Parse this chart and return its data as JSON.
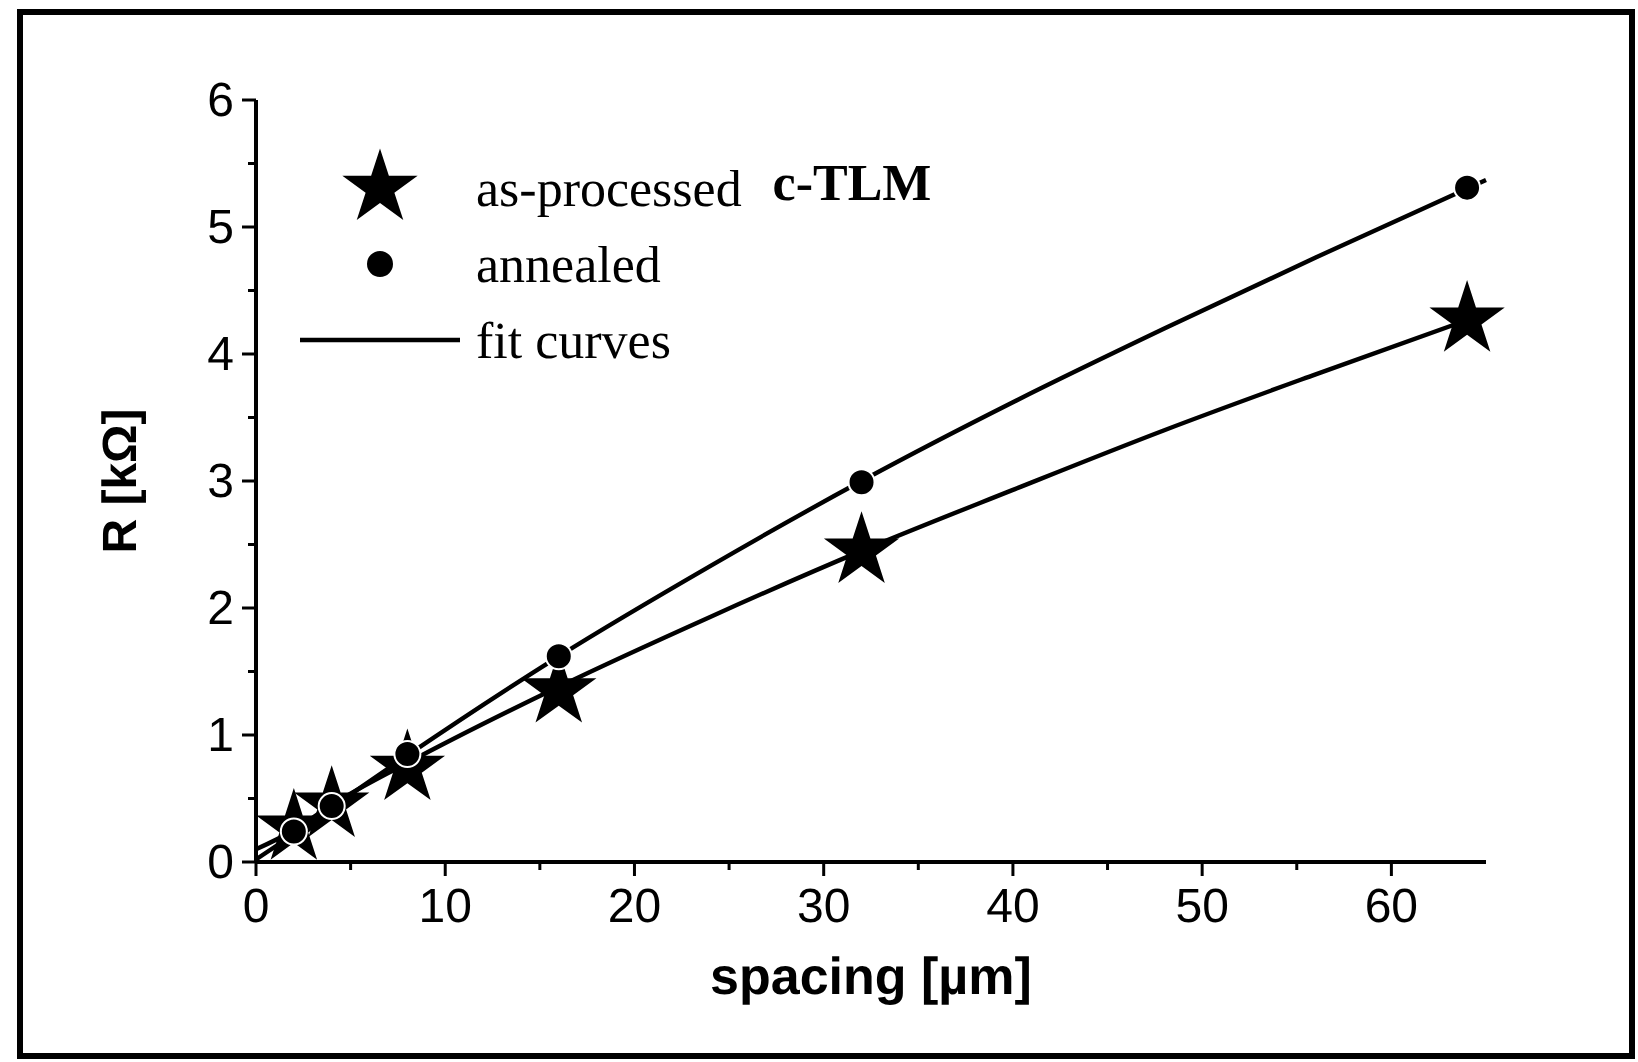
{
  "chart_data": {
    "type": "scatter",
    "xlabel": "spacing  [µm]",
    "ylabel": "R  [kΩ]",
    "annotations": [
      "c-TLM"
    ],
    "xlim": [
      0,
      65
    ],
    "ylim": [
      0,
      6
    ],
    "xticks": [
      0,
      {
        "value": 5,
        "label": null
      },
      10,
      {
        "value": 15,
        "label": null
      },
      20,
      {
        "value": 25,
        "label": null
      },
      30,
      {
        "value": 35,
        "label": null
      },
      40,
      {
        "value": 45,
        "label": null
      },
      50,
      {
        "value": 55,
        "label": null
      },
      60
    ],
    "yticks": [
      0,
      {
        "value": 0.5,
        "label": null
      },
      1,
      {
        "value": 1.5,
        "label": null
      },
      2,
      {
        "value": 2.5,
        "label": null
      },
      3,
      {
        "value": 3.5,
        "label": null
      },
      4,
      {
        "value": 4.5,
        "label": null
      },
      5,
      {
        "value": 5.5,
        "label": null
      },
      6
    ],
    "grid": false,
    "legend": "top left",
    "series": [
      {
        "name": "as-processed",
        "marker": "star",
        "color": "#000000",
        "x": [
          2,
          4,
          8,
          16,
          32,
          64
        ],
        "values": [
          0.27,
          0.45,
          0.74,
          1.35,
          2.45,
          4.27
        ]
      },
      {
        "name": "annealed",
        "marker": "circle",
        "color": "#000000",
        "x": [
          2,
          4,
          8,
          16,
          32,
          64
        ],
        "values": [
          0.24,
          0.44,
          0.85,
          1.62,
          2.99,
          5.31
        ]
      },
      {
        "name": "fit curves",
        "type": "line",
        "marker": "none",
        "line_style": "solid",
        "color": "#000000",
        "x": [
          0,
          2,
          4,
          8,
          16,
          24,
          32,
          40,
          48,
          56,
          65
        ],
        "values": [
          0.02,
          0.22,
          0.43,
          0.84,
          1.62,
          2.33,
          3.0,
          3.62,
          4.2,
          4.76,
          5.37
        ]
      },
      {
        "type": "line",
        "marker": "none",
        "line_style": "solid",
        "color": "#000000",
        "x": [
          0,
          2,
          4,
          8,
          16,
          24,
          32,
          40,
          48,
          56,
          65
        ],
        "values": [
          0.1,
          0.25,
          0.45,
          0.78,
          1.38,
          1.93,
          2.45,
          2.93,
          3.4,
          3.84,
          4.32
        ]
      }
    ]
  }
}
